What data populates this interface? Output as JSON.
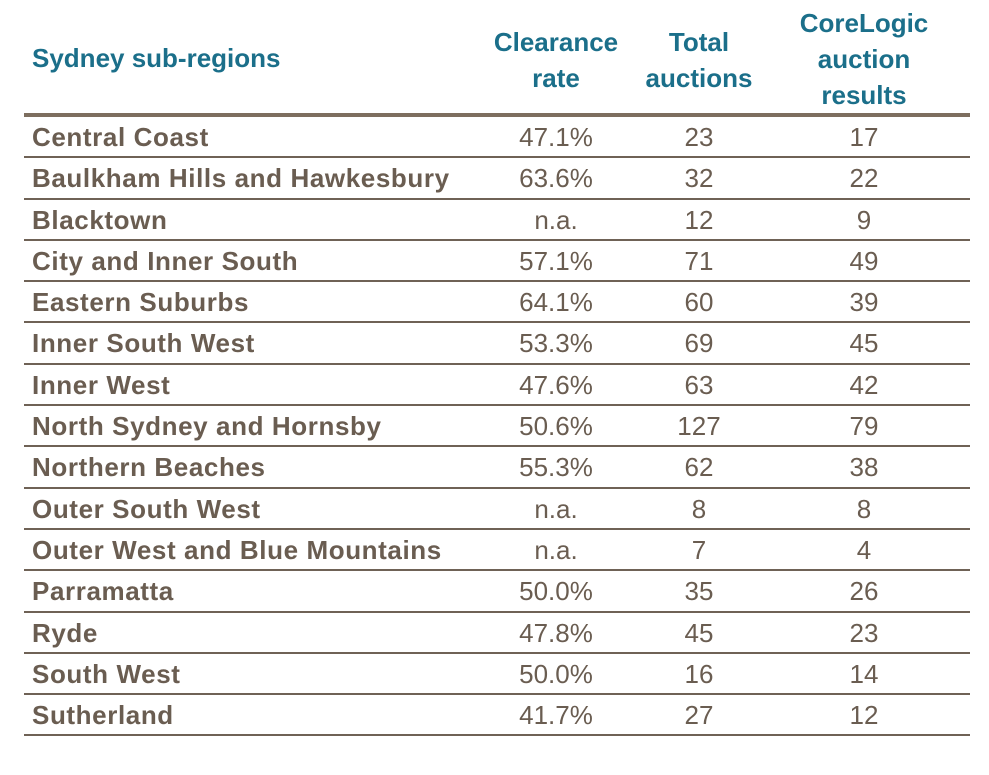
{
  "chart_data": {
    "type": "table",
    "columns": [
      "Sydney sub-regions",
      "Clearance rate",
      "Total auctions",
      "CoreLogic auction results"
    ],
    "header_lines": {
      "clearance": [
        "Clearance",
        "rate"
      ],
      "total": [
        "Total",
        "auctions"
      ],
      "corelogic": [
        "CoreLogic",
        "auction",
        "results"
      ]
    },
    "rows": [
      {
        "region": "Central Coast",
        "clearance": "47.1%",
        "total": "23",
        "corelogic": "17"
      },
      {
        "region": "Baulkham Hills and Hawkesbury",
        "clearance": "63.6%",
        "total": "32",
        "corelogic": "22"
      },
      {
        "region": "Blacktown",
        "clearance": "n.a.",
        "total": "12",
        "corelogic": "9"
      },
      {
        "region": "City and Inner South",
        "clearance": "57.1%",
        "total": "71",
        "corelogic": "49"
      },
      {
        "region": "Eastern Suburbs",
        "clearance": "64.1%",
        "total": "60",
        "corelogic": "39"
      },
      {
        "region": "Inner South West",
        "clearance": "53.3%",
        "total": "69",
        "corelogic": "45"
      },
      {
        "region": "Inner West",
        "clearance": "47.6%",
        "total": "63",
        "corelogic": "42"
      },
      {
        "region": "North Sydney and Hornsby",
        "clearance": "50.6%",
        "total": "127",
        "corelogic": "79"
      },
      {
        "region": "Northern Beaches",
        "clearance": "55.3%",
        "total": "62",
        "corelogic": "38"
      },
      {
        "region": "Outer South West",
        "clearance": "n.a.",
        "total": "8",
        "corelogic": "8"
      },
      {
        "region": "Outer West and Blue Mountains",
        "clearance": "n.a.",
        "total": "7",
        "corelogic": "4"
      },
      {
        "region": "Parramatta",
        "clearance": "50.0%",
        "total": "35",
        "corelogic": "26"
      },
      {
        "region": "Ryde",
        "clearance": "47.8%",
        "total": "45",
        "corelogic": "23"
      },
      {
        "region": "South West",
        "clearance": "50.0%",
        "total": "16",
        "corelogic": "14"
      },
      {
        "region": "Sutherland",
        "clearance": "41.7%",
        "total": "27",
        "corelogic": "12"
      }
    ]
  },
  "colors": {
    "header_text": "#1b6f8a",
    "body_text": "#6a5d51",
    "rule": "#6f6256"
  }
}
